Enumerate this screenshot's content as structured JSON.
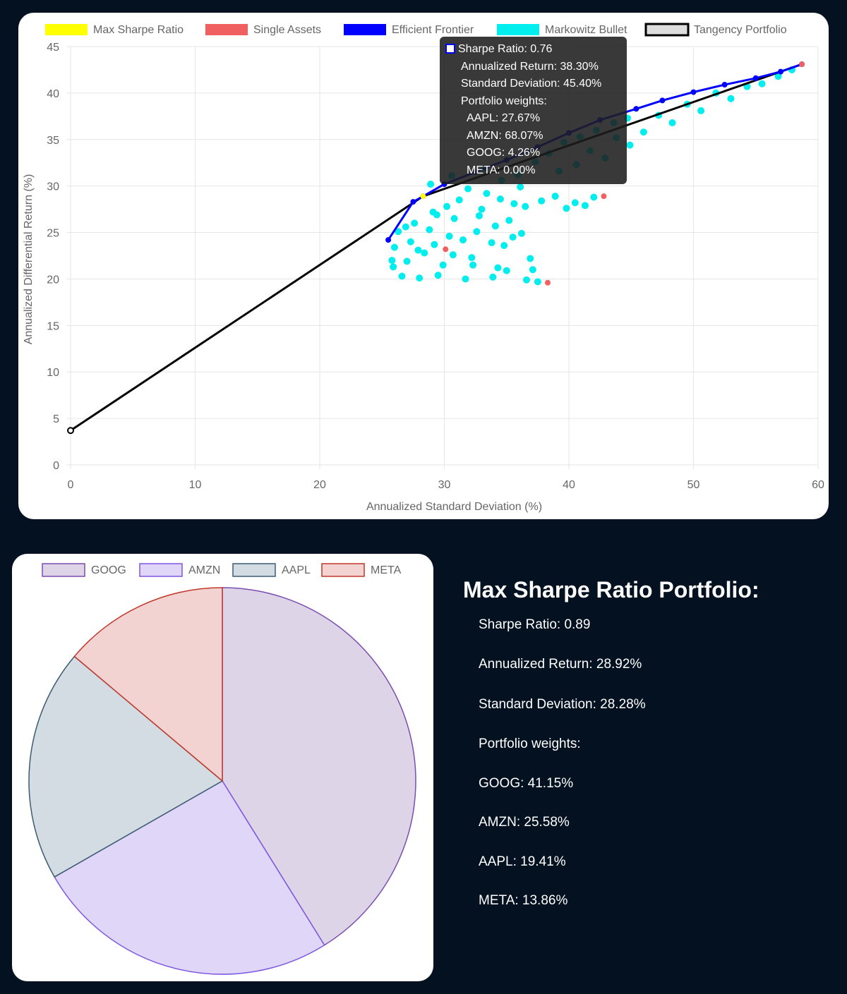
{
  "scatter": {
    "legend": [
      {
        "label": "Max Sharpe Ratio",
        "fill": "#ffff00",
        "stroke": "#ffff00",
        "stroke_width": 0
      },
      {
        "label": "Single Assets",
        "fill": "#f06060",
        "stroke": "#f06060",
        "stroke_width": 0
      },
      {
        "label": "Efficient Frontier",
        "fill": "#0000ff",
        "stroke": "#0000ff",
        "stroke_width": 0
      },
      {
        "label": "Markowitz Bullet",
        "fill": "#00eeee",
        "stroke": "#00eeee",
        "stroke_width": 0
      },
      {
        "label": "Tangency Portfolio",
        "fill": "#dddddd",
        "stroke": "#000000",
        "stroke_width": 3
      }
    ],
    "tooltip": {
      "sharpe": "Sharpe Ratio: 0.76",
      "ret": "Annualized Return: 38.30%",
      "sd": "Standard Deviation: 45.40%",
      "weights_title": "Portfolio weights:",
      "w1": "AAPL: 27.67%",
      "w2": "AMZN: 68.07%",
      "w3": "GOOG: 4.26%",
      "w4": "META: 0.00%"
    }
  },
  "summary": {
    "title": "Max Sharpe Ratio Portfolio:",
    "sharpe": "Sharpe Ratio: 0.89",
    "ret": "Annualized Return: 28.92%",
    "sd": "Standard Deviation: 28.28%",
    "weights_title": "Portfolio weights:",
    "w1": "GOOG: 41.15%",
    "w2": "AMZN: 25.58%",
    "w3": "AAPL: 19.41%",
    "w4": "META: 13.86%"
  },
  "chart_data": [
    {
      "type": "scatter",
      "xlabel": "Annualized Standard Deviation (%)",
      "ylabel": "Annualized Differential Return (%)",
      "xlim": [
        0,
        60
      ],
      "ylim": [
        0,
        45
      ],
      "xticks": [
        "0",
        "10",
        "20",
        "30",
        "40",
        "50",
        "60"
      ],
      "yticks": [
        "0",
        "5",
        "10",
        "15",
        "20",
        "25",
        "30",
        "35",
        "40",
        "45"
      ],
      "grid": true,
      "legend_position": "top",
      "colors": {
        "max_sharpe": "#ffff00",
        "single": "#f06060",
        "frontier": "#0000ff",
        "bullet": "#00eeee",
        "tangency": "#000000"
      },
      "series": [
        {
          "name": "Max Sharpe Ratio",
          "points": [
            [
              28.3,
              28.9
            ]
          ]
        },
        {
          "name": "Single Assets",
          "points": [
            [
              30.1,
              23.2
            ],
            [
              38.3,
              19.6
            ],
            [
              42.8,
              28.9
            ],
            [
              58.7,
              43.1
            ]
          ]
        },
        {
          "name": "Efficient Frontier",
          "points": [
            [
              25.5,
              24.2
            ],
            [
              27.5,
              28.3
            ],
            [
              28.3,
              28.9
            ],
            [
              30.0,
              30.2
            ],
            [
              32.5,
              31.5
            ],
            [
              35.0,
              32.8
            ],
            [
              37.5,
              34.2
            ],
            [
              40.0,
              35.7
            ],
            [
              42.5,
              37.1
            ],
            [
              45.4,
              38.3
            ],
            [
              47.5,
              39.2
            ],
            [
              50.0,
              40.1
            ],
            [
              52.5,
              40.9
            ],
            [
              55.0,
              41.6
            ],
            [
              57.0,
              42.3
            ],
            [
              58.7,
              43.1
            ]
          ]
        },
        {
          "name": "Markowitz Bullet",
          "points": [
            [
              25.8,
              22.0
            ],
            [
              26.0,
              23.4
            ],
            [
              25.9,
              21.3
            ],
            [
              26.3,
              25.1
            ],
            [
              26.6,
              20.3
            ],
            [
              27.0,
              21.9
            ],
            [
              27.3,
              24.0
            ],
            [
              27.6,
              26.0
            ],
            [
              28.0,
              20.1
            ],
            [
              28.4,
              22.8
            ],
            [
              28.8,
              25.3
            ],
            [
              29.1,
              27.2
            ],
            [
              29.5,
              20.4
            ],
            [
              29.9,
              21.5
            ],
            [
              30.4,
              24.6
            ],
            [
              30.8,
              26.5
            ],
            [
              31.2,
              28.5
            ],
            [
              31.7,
              20.0
            ],
            [
              32.2,
              22.3
            ],
            [
              32.6,
              25.1
            ],
            [
              33.0,
              27.5
            ],
            [
              33.4,
              29.2
            ],
            [
              33.9,
              20.2
            ],
            [
              34.3,
              21.2
            ],
            [
              34.8,
              23.6
            ],
            [
              35.2,
              26.3
            ],
            [
              35.6,
              28.1
            ],
            [
              36.1,
              29.9
            ],
            [
              36.6,
              19.9
            ],
            [
              37.1,
              21.0
            ],
            [
              37.5,
              19.7
            ],
            [
              36.9,
              22.2
            ],
            [
              35.5,
              24.5
            ],
            [
              34.5,
              28.6
            ],
            [
              36.5,
              27.8
            ],
            [
              37.8,
              28.4
            ],
            [
              38.9,
              28.9
            ],
            [
              39.8,
              27.6
            ],
            [
              40.5,
              28.2
            ],
            [
              41.3,
              27.9
            ],
            [
              42.0,
              28.8
            ],
            [
              39.2,
              31.6
            ],
            [
              40.6,
              32.3
            ],
            [
              41.7,
              33.8
            ],
            [
              42.9,
              33.0
            ],
            [
              43.8,
              35.2
            ],
            [
              44.9,
              34.4
            ],
            [
              46.0,
              35.8
            ],
            [
              47.2,
              37.6
            ],
            [
              48.3,
              36.8
            ],
            [
              49.5,
              38.8
            ],
            [
              50.6,
              38.1
            ],
            [
              51.8,
              40.0
            ],
            [
              53.0,
              39.4
            ],
            [
              54.3,
              40.7
            ],
            [
              55.5,
              41.0
            ],
            [
              56.8,
              41.8
            ],
            [
              57.9,
              42.5
            ],
            [
              28.9,
              30.2
            ],
            [
              30.6,
              31.1
            ],
            [
              31.9,
              29.7
            ],
            [
              33.2,
              31.9
            ],
            [
              34.6,
              30.6
            ],
            [
              35.9,
              31.2
            ],
            [
              37.3,
              32.6
            ],
            [
              38.4,
              33.5
            ],
            [
              39.6,
              34.7
            ],
            [
              40.9,
              35.3
            ],
            [
              42.2,
              36.0
            ],
            [
              43.6,
              36.8
            ],
            [
              44.7,
              37.3
            ],
            [
              29.4,
              26.9
            ],
            [
              30.2,
              27.8
            ],
            [
              32.8,
              26.8
            ],
            [
              27.9,
              23.1
            ],
            [
              30.7,
              22.6
            ],
            [
              32.3,
              21.5
            ],
            [
              33.8,
              23.9
            ],
            [
              35.0,
              20.9
            ],
            [
              36.2,
              24.9
            ],
            [
              34.1,
              25.7
            ],
            [
              31.5,
              24.2
            ],
            [
              29.2,
              23.7
            ],
            [
              26.9,
              25.6
            ]
          ]
        },
        {
          "name": "Tangency Portfolio",
          "points": [
            [
              0,
              3.7
            ],
            [
              28.3,
              28.9
            ],
            [
              58.7,
              43.1
            ]
          ]
        }
      ]
    },
    {
      "type": "pie",
      "categories": [
        "GOOG",
        "AMZN",
        "AAPL",
        "META"
      ],
      "values": [
        41.15,
        25.58,
        19.41,
        13.86
      ],
      "fills": [
        "#ddd4e7",
        "#e0d6f8",
        "#d3dce2",
        "#f3d3d2"
      ],
      "strokes": [
        "#7c4db0",
        "#7e57e0",
        "#3c5b72",
        "#c0392b"
      ],
      "legend_position": "top"
    }
  ]
}
